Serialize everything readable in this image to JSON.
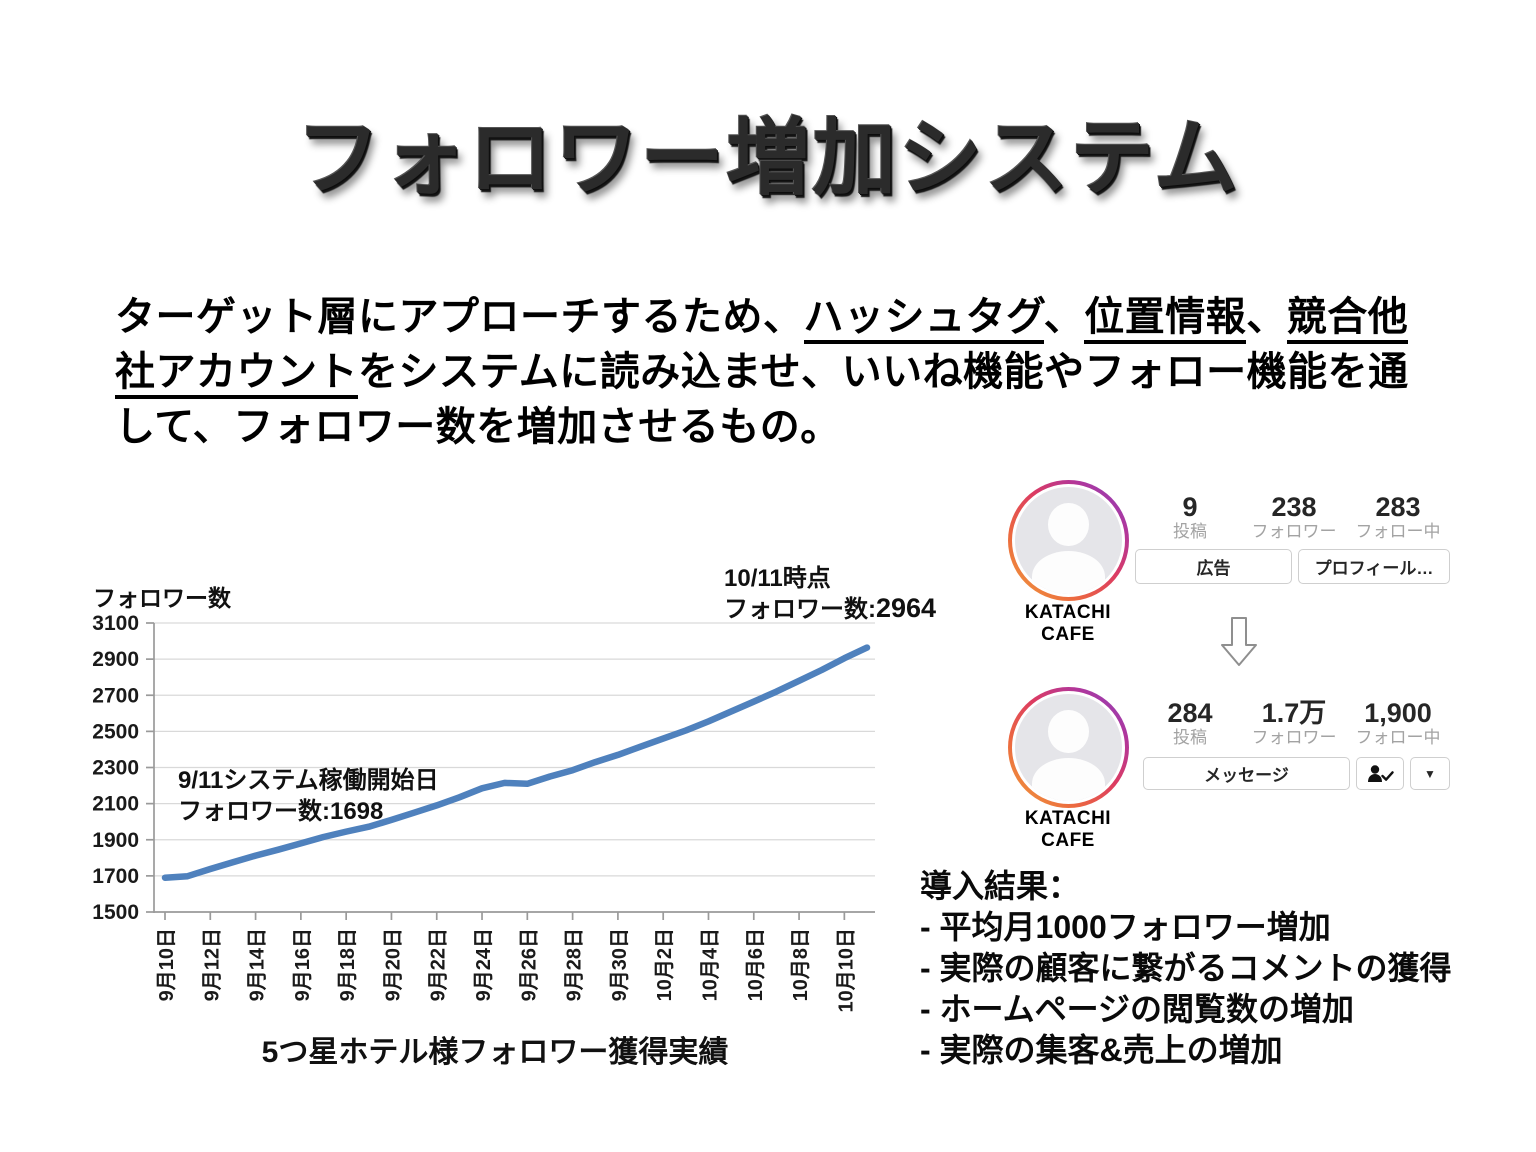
{
  "slide": {
    "title": "フォロワー増加システム"
  },
  "intro": {
    "segments": [
      {
        "text": "ターゲット層にアプローチするため、",
        "underline": false
      },
      {
        "text": "ハッシュタグ",
        "underline": true
      },
      {
        "text": "、",
        "underline": false
      },
      {
        "text": "位置情報",
        "underline": true
      },
      {
        "text": "、",
        "underline": false
      },
      {
        "text": "競合他社アカウント",
        "underline": true
      },
      {
        "text": "をシステムに読み込ませ、いいね機能やフォロー機能を通して、フォロワー数を増加させるもの。",
        "underline": false
      }
    ]
  },
  "chart_data": {
    "type": "line",
    "title": "5つ星ホテル様フォロワー獲得実績",
    "ylabel": "フォロワー数",
    "xlabel": "",
    "ylim": [
      1500,
      3100
    ],
    "yticks": [
      1500,
      1700,
      1900,
      2100,
      2300,
      2500,
      2700,
      2900,
      3100
    ],
    "grid": "horizontal",
    "legend": "none",
    "x": [
      "9/10",
      "9/11",
      "9/12",
      "9/13",
      "9/14",
      "9/15",
      "9/16",
      "9/17",
      "9/18",
      "9/19",
      "9/20",
      "9/21",
      "9/22",
      "9/23",
      "9/24",
      "9/25",
      "9/26",
      "9/27",
      "9/28",
      "9/29",
      "9/30",
      "10/1",
      "10/2",
      "10/3",
      "10/4",
      "10/5",
      "10/6",
      "10/7",
      "10/8",
      "10/9",
      "10/10",
      "10/11"
    ],
    "xtick_labels": [
      "9月10日",
      "9月12日",
      "9月14日",
      "9月16日",
      "9月18日",
      "9月20日",
      "9月22日",
      "9月24日",
      "9月26日",
      "9月28日",
      "9月30日",
      "10月2日",
      "10月4日",
      "10月6日",
      "10月8日",
      "10月10日"
    ],
    "series": [
      {
        "name": "フォロワー数",
        "color": "#4f81bd",
        "values": [
          1690,
          1698,
          1738,
          1775,
          1812,
          1845,
          1880,
          1915,
          1945,
          1972,
          2010,
          2050,
          2090,
          2135,
          2185,
          2215,
          2210,
          2250,
          2285,
          2330,
          2370,
          2415,
          2460,
          2505,
          2555,
          2610,
          2665,
          2720,
          2780,
          2840,
          2905,
          2964
        ]
      }
    ],
    "annotations": {
      "start": {
        "line1": "9/11システム稼働開始日",
        "line2": "フォロワー数:1698"
      },
      "end": {
        "line1": "10/11時点",
        "line2_prefix": "フォロワー数:",
        "line2_value": "2964"
      }
    },
    "colors": {
      "grid": "#d9d9d9",
      "axis": "#9a9a9a"
    }
  },
  "profiles": {
    "before": {
      "name": "KATACHI CAFE",
      "stats": [
        {
          "value": "9",
          "label": "投稿"
        },
        {
          "value": "238",
          "label": "フォロワー"
        },
        {
          "value": "283",
          "label": "フォロー中"
        }
      ],
      "buttons": [
        {
          "label": "広告"
        },
        {
          "label": "プロフィール…"
        }
      ]
    },
    "after": {
      "name": "KATACHI CAFE",
      "stats": [
        {
          "value": "284",
          "label": "投稿"
        },
        {
          "value": "1.7万",
          "label": "フォロワー"
        },
        {
          "value": "1,900",
          "label": "フォロー中"
        }
      ],
      "buttons": [
        {
          "label": "メッセージ"
        }
      ],
      "icon_buttons": [
        "person-check",
        "chevron-down"
      ]
    }
  },
  "results": {
    "heading": "導入結果：",
    "items": [
      "- 平均月1000フォロワー増加",
      "- 実際の顧客に繋がるコメントの獲得",
      "- ホームページの閲覧数の増加",
      "- 実際の集客&売上の増加"
    ]
  }
}
